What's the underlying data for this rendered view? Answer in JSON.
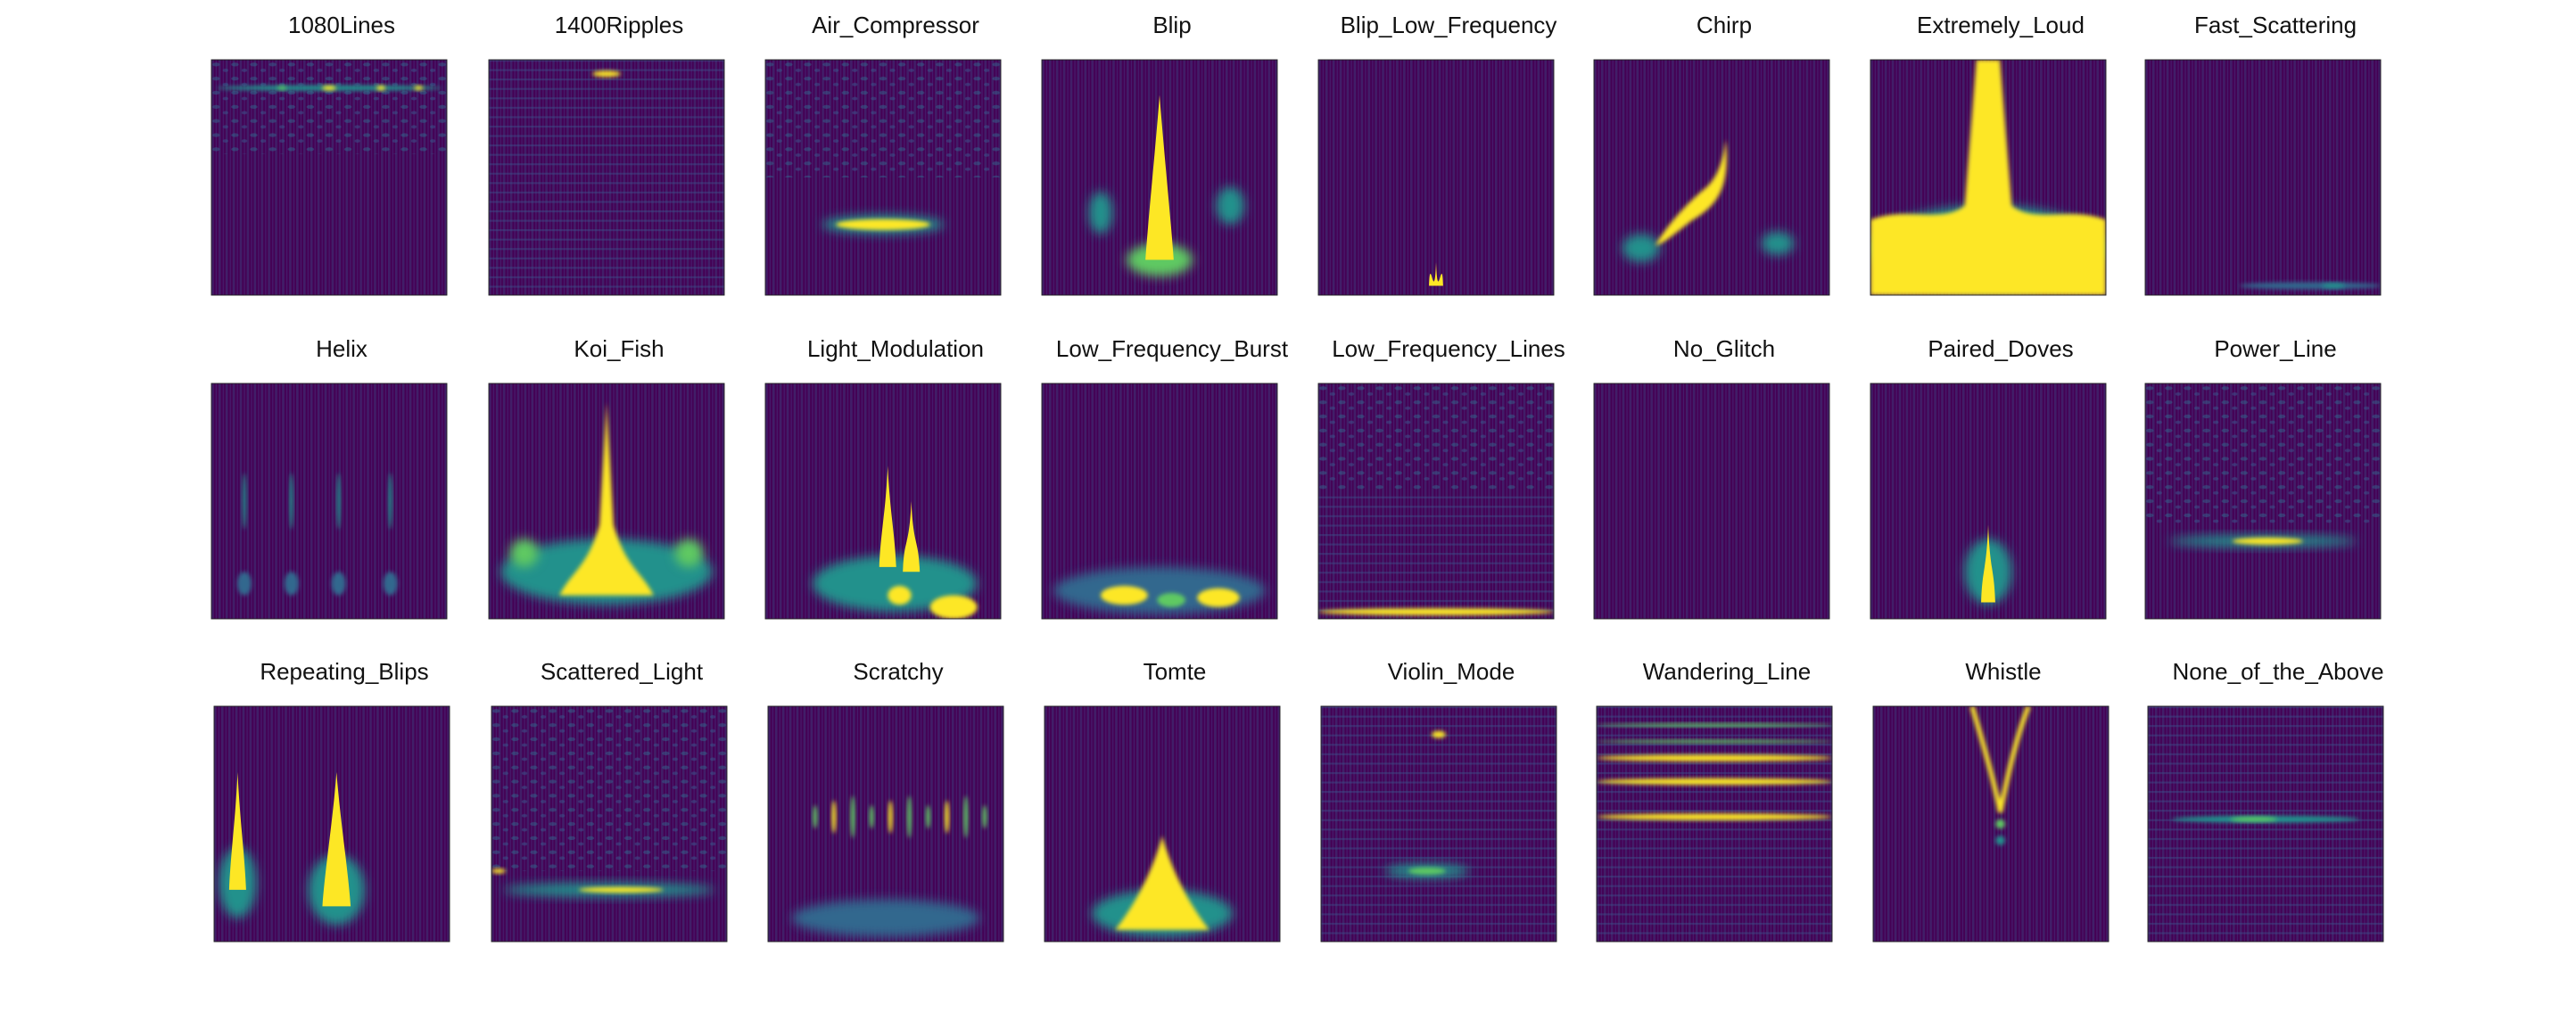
{
  "panels": [
    {
      "title": "1080Lines"
    },
    {
      "title": "1400Ripples"
    },
    {
      "title": "Air_Compressor"
    },
    {
      "title": "Blip"
    },
    {
      "title": "Blip_Low_Frequency"
    },
    {
      "title": "Chirp"
    },
    {
      "title": "Extremely_Loud"
    },
    {
      "title": "Fast_Scattering"
    },
    {
      "title": "Helix"
    },
    {
      "title": "Koi_Fish"
    },
    {
      "title": "Light_Modulation"
    },
    {
      "title": "Low_Frequency_Burst"
    },
    {
      "title": "Low_Frequency_Lines"
    },
    {
      "title": "No_Glitch"
    },
    {
      "title": "Paired_Doves"
    },
    {
      "title": "Power_Line"
    },
    {
      "title": "Repeating_Blips"
    },
    {
      "title": "Scattered_Light"
    },
    {
      "title": "Scratchy"
    },
    {
      "title": "Tomte"
    },
    {
      "title": "Violin_Mode"
    },
    {
      "title": "Wandering_Line"
    },
    {
      "title": "Whistle"
    },
    {
      "title": "None_of_the_Above"
    }
  ]
}
